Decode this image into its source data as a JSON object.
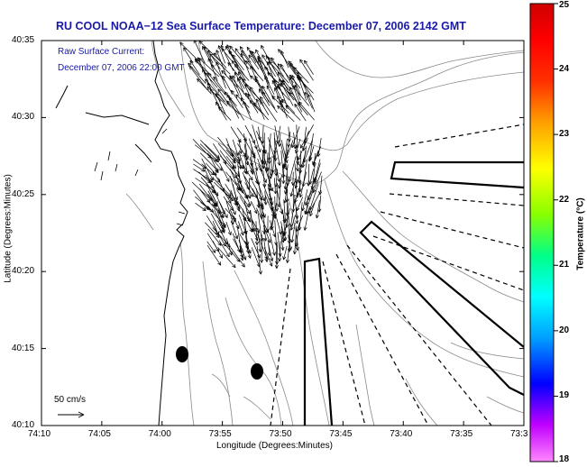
{
  "title": "RU COOL  NOAA−12  Sea Surface Temperature:  December 07, 2006 2142 GMT",
  "annotation_line1": "Raw Surface Current:",
  "annotation_line2": "December 07, 2006 22:00 GMT",
  "y_axis_label": "Latitude (Degrees:Minutes)",
  "x_axis_label": "Longitude (Degrees:Minutes)",
  "y_ticks": [
    "40:35",
    "40:30",
    "40:25",
    "40:20",
    "40:15",
    "40:10"
  ],
  "x_ticks": [
    "74:10",
    "74:05",
    "74:00",
    "73:55",
    "73:50",
    "73:45",
    "73:40",
    "73:35",
    "73:3"
  ],
  "colorbar": {
    "label": "Temperature (°C)",
    "ticks": [
      "25",
      "24",
      "23",
      "22",
      "21",
      "20",
      "19",
      "18"
    ],
    "range": [
      18,
      25
    ],
    "colors": [
      "#ff88ff",
      "#c000ff",
      "#0000ff",
      "#00a0ff",
      "#00ffff",
      "#00ff88",
      "#88ff00",
      "#ffff00",
      "#ffa000",
      "#ff3000",
      "#ff0000",
      "#d00000"
    ]
  },
  "scale_label": "50 cm/s",
  "colors": {
    "title": "#1a1aa6",
    "coast": "#000000",
    "contour": "#8a8a8a",
    "vector": "#000000"
  }
}
